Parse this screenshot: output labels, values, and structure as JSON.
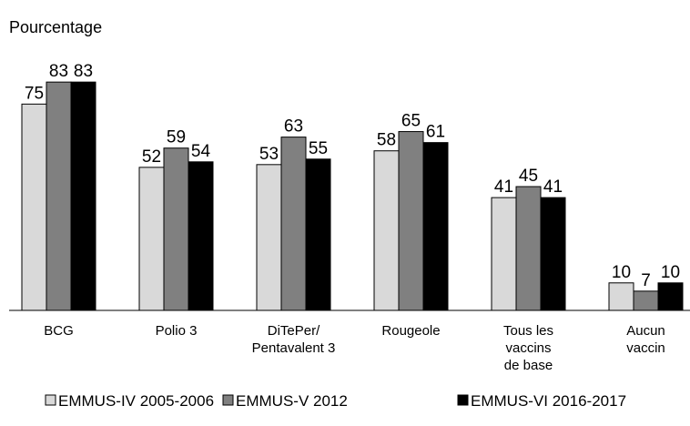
{
  "chart_data": {
    "type": "bar",
    "y_label": "Pourcentage",
    "categories": [
      "BCG",
      "Polio 3",
      "DiTePer/\nPentavalent 3",
      "Rougeole",
      "Tous les\nvaccins\nde base",
      "Aucun\nvaccin"
    ],
    "series": [
      {
        "name": "EMMUS-IV 2005-2006",
        "color": "#d9d9d9",
        "values": [
          75,
          52,
          53,
          58,
          41,
          10
        ]
      },
      {
        "name": "EMMUS-V 2012",
        "color": "#808080",
        "values": [
          83,
          59,
          63,
          65,
          45,
          7
        ]
      },
      {
        "name": "EMMUS-VI 2016-2017",
        "color": "#000000",
        "values": [
          83,
          54,
          55,
          61,
          41,
          10
        ]
      }
    ],
    "ylim": [
      0,
      90
    ],
    "legend": "bottom"
  }
}
